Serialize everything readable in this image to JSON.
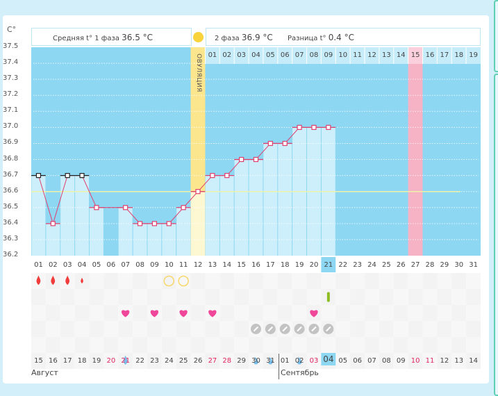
{
  "unit_label": "C°",
  "header": {
    "phase1_label": "Средняя t° 1 фаза",
    "phase1_value": "36.5 °C",
    "phase2_label": "2 фаза",
    "phase2_value": "36.9 °C",
    "diff_label": "Разница t°",
    "diff_value": "0.4 °C"
  },
  "ovulation_label": "ОВУЛЯЦИЯ",
  "colors": {
    "chart_bg": "#8dd7f2",
    "bar": "#cdeffc",
    "ovulation": "#fbe68e",
    "ovulation_light": "#fdf7d2",
    "pink": "#f7b3c6",
    "line": "#e0406e",
    "coverline": "#eef3a8"
  },
  "chart_data": {
    "type": "line",
    "ylabel": "C°",
    "ylim": [
      36.2,
      37.5
    ],
    "yticks": [
      "37.5",
      "37.4",
      "37.3",
      "37.2",
      "37.1",
      "37.0",
      "36.9",
      "36.8",
      "36.7",
      "36.6",
      "36.5",
      "36.4",
      "36.3",
      "36.2"
    ],
    "x": [
      "01",
      "02",
      "03",
      "04",
      "05",
      "06",
      "07",
      "08",
      "09",
      "10",
      "11",
      "12",
      "13",
      "14",
      "15",
      "16",
      "17",
      "18",
      "19",
      "20",
      "21",
      "22",
      "23",
      "24",
      "25",
      "26",
      "27",
      "28",
      "29",
      "30",
      "31"
    ],
    "values": [
      36.7,
      36.4,
      36.7,
      36.7,
      36.5,
      null,
      36.5,
      36.4,
      36.4,
      36.4,
      36.5,
      36.6,
      36.7,
      36.7,
      36.8,
      36.8,
      36.9,
      36.9,
      37.0,
      37.0,
      37.0,
      null,
      null,
      null,
      null,
      null,
      null,
      null,
      null,
      null,
      null
    ],
    "period_days": [
      1,
      3,
      4
    ],
    "skipped_day_value": 36.5,
    "coverline": 36.6,
    "ovulation_day": 12,
    "highlight_day": 27,
    "current_day": 21,
    "cycle_days": [
      "01",
      "02",
      "03",
      "04",
      "05",
      "06",
      "07",
      "08",
      "09",
      "10",
      "11",
      "12",
      "13",
      "14",
      "15",
      "16",
      "17",
      "18",
      "19"
    ]
  },
  "symptoms": {
    "bleeding": [
      {
        "day": 1,
        "size": "big"
      },
      {
        "day": 2,
        "size": "big"
      },
      {
        "day": 3,
        "size": "big"
      },
      {
        "day": 4,
        "size": "small"
      }
    ],
    "circles": [
      10,
      11
    ],
    "test": [
      21
    ],
    "hearts": [
      7,
      9,
      11,
      13,
      20
    ],
    "pills": [
      16,
      17,
      18,
      19,
      20,
      21
    ],
    "discharge": [
      {
        "day": 7,
        "size": "big"
      },
      {
        "day": 16,
        "size": "small"
      },
      {
        "day": 17,
        "size": "small"
      },
      {
        "day": 19,
        "size": "small"
      }
    ]
  },
  "calendar": {
    "dates": [
      "15",
      "16",
      "17",
      "18",
      "19",
      "20",
      "21",
      "22",
      "23",
      "24",
      "25",
      "26",
      "27",
      "28",
      "29",
      "30",
      "31",
      "01",
      "02",
      "03",
      "04",
      "05",
      "06",
      "07",
      "08",
      "09",
      "10",
      "11",
      "12",
      "13",
      "14"
    ],
    "weekend_indices": [
      5,
      6,
      12,
      13,
      19,
      26,
      27
    ],
    "today_index": 20,
    "month1": "Август",
    "month2": "Сентябрь"
  }
}
